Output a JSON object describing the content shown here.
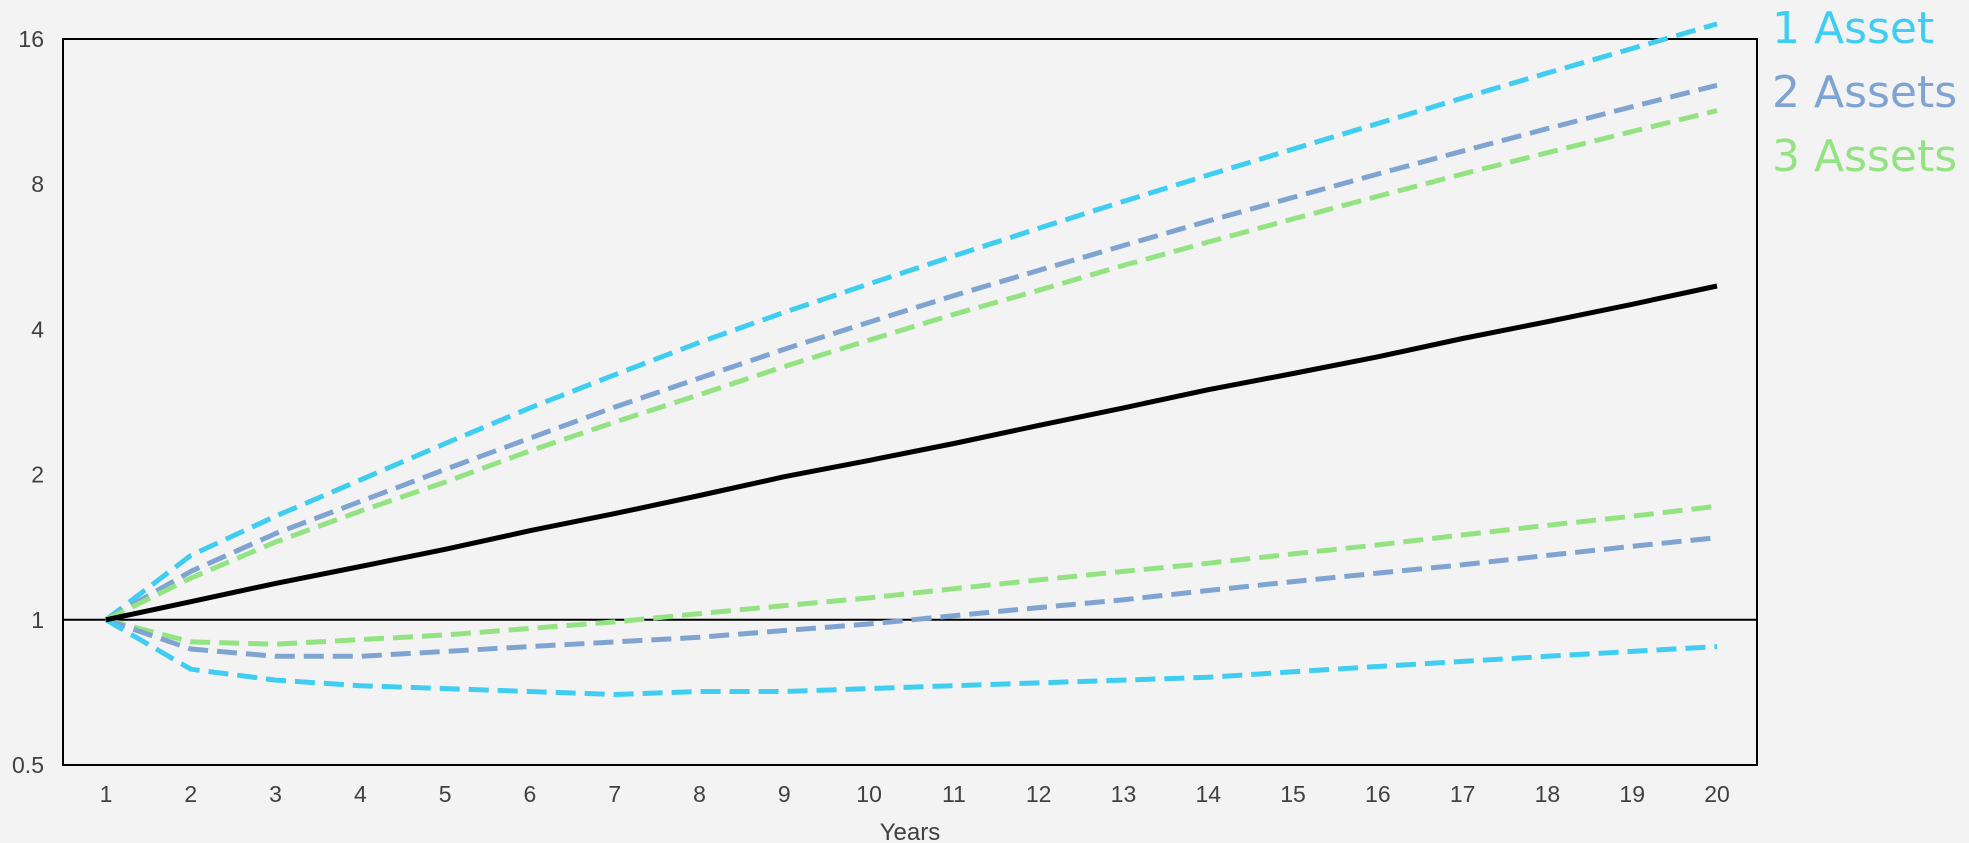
{
  "chart_data": {
    "type": "line",
    "title": "",
    "xlabel": "Years",
    "ylabel": "",
    "yscale": "log2",
    "xlim": [
      1,
      20
    ],
    "ylim": [
      0.5,
      16
    ],
    "x": [
      1,
      2,
      3,
      4,
      5,
      6,
      7,
      8,
      9,
      10,
      11,
      12,
      13,
      14,
      15,
      16,
      17,
      18,
      19,
      20
    ],
    "xticks": [
      "1",
      "2",
      "3",
      "4",
      "5",
      "6",
      "7",
      "8",
      "9",
      "10",
      "11",
      "12",
      "13",
      "14",
      "15",
      "16",
      "17",
      "18",
      "19",
      "20"
    ],
    "yticks": [
      "0.5",
      "1",
      "2",
      "4",
      "8",
      "16"
    ],
    "reference_line": 1,
    "legend_position": "right-outside-top",
    "grid": false,
    "legend": [
      {
        "name": "1 Asset",
        "color": "#3fcdf2"
      },
      {
        "name": "2 Assets",
        "color": "#7fa4d2"
      },
      {
        "name": "3 Assets",
        "color": "#94e383"
      }
    ],
    "series": [
      {
        "key": "median",
        "color": "#000000",
        "style": "solid",
        "values": [
          1.0,
          1.09,
          1.19,
          1.29,
          1.4,
          1.53,
          1.66,
          1.81,
          1.98,
          2.14,
          2.32,
          2.53,
          2.75,
          3.0,
          3.24,
          3.51,
          3.83,
          4.15,
          4.51,
          4.92
        ]
      },
      {
        "key": "1-asset-upper",
        "series": "1 Asset",
        "color": "#3fcdf2",
        "style": "dashed",
        "values": [
          1.0,
          1.36,
          1.64,
          1.95,
          2.32,
          2.75,
          3.22,
          3.76,
          4.34,
          4.97,
          5.68,
          6.48,
          7.37,
          8.36,
          9.46,
          10.69,
          12.07,
          13.6,
          15.29,
          17.2
        ]
      },
      {
        "key": "2-assets-upper",
        "series": "2 Assets",
        "color": "#7fa4d2",
        "style": "dashed",
        "values": [
          1.0,
          1.26,
          1.51,
          1.76,
          2.05,
          2.38,
          2.76,
          3.17,
          3.64,
          4.14,
          4.7,
          5.3,
          5.97,
          6.71,
          7.51,
          8.4,
          9.37,
          10.43,
          11.58,
          12.83
        ]
      },
      {
        "key": "3-assets-upper",
        "series": "3 Assets",
        "color": "#94e383",
        "style": "dashed",
        "values": [
          1.0,
          1.22,
          1.45,
          1.68,
          1.93,
          2.24,
          2.57,
          2.93,
          3.35,
          3.8,
          4.3,
          4.82,
          5.43,
          6.07,
          6.78,
          7.55,
          8.4,
          9.3,
          10.29,
          11.37
        ]
      },
      {
        "key": "3-assets-lower",
        "series": "3 Assets",
        "color": "#94e383",
        "style": "dashed",
        "values": [
          1.0,
          0.9,
          0.89,
          0.91,
          0.93,
          0.96,
          0.99,
          1.03,
          1.07,
          1.11,
          1.16,
          1.21,
          1.26,
          1.31,
          1.37,
          1.43,
          1.5,
          1.57,
          1.64,
          1.72
        ]
      },
      {
        "key": "2-assets-lower",
        "series": "2 Assets",
        "color": "#7fa4d2",
        "style": "dashed",
        "values": [
          1.0,
          0.87,
          0.84,
          0.84,
          0.86,
          0.88,
          0.9,
          0.92,
          0.95,
          0.98,
          1.02,
          1.06,
          1.1,
          1.15,
          1.2,
          1.25,
          1.3,
          1.36,
          1.42,
          1.48
        ]
      },
      {
        "key": "1-asset-lower",
        "series": "1 Asset",
        "color": "#3fcdf2",
        "style": "dashed",
        "values": [
          1.0,
          0.79,
          0.75,
          0.73,
          0.72,
          0.71,
          0.7,
          0.71,
          0.71,
          0.72,
          0.73,
          0.74,
          0.75,
          0.76,
          0.78,
          0.8,
          0.82,
          0.84,
          0.86,
          0.88
        ]
      }
    ]
  }
}
